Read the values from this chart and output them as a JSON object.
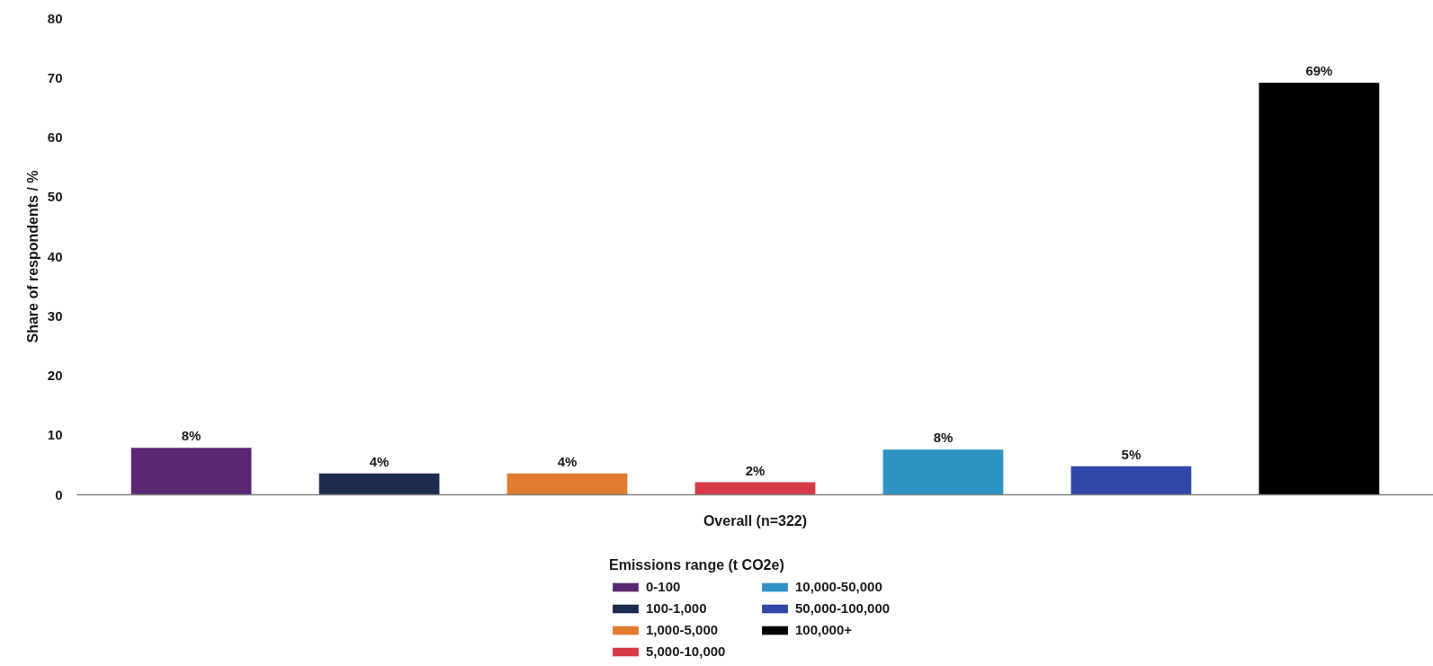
{
  "chart_data": {
    "type": "bar",
    "categories": [
      "Overall (n=322)"
    ],
    "ylabel": "Share of respondents / %",
    "legend_title": "Emissions range (t CO2e)",
    "legend": "bottom",
    "ylim": [
      0,
      80
    ],
    "yticks": [
      0,
      10,
      20,
      30,
      40,
      50,
      60,
      70,
      80
    ],
    "series": [
      {
        "name": "0-100",
        "color": "#5a2870",
        "values": [
          7.9
        ],
        "value_labels": [
          "8%"
        ]
      },
      {
        "name": "100-1,000",
        "color": "#1c2b4f",
        "values": [
          3.6
        ],
        "value_labels": [
          "4%"
        ]
      },
      {
        "name": "1,000-5,000",
        "color": "#e07b2e",
        "values": [
          3.6
        ],
        "value_labels": [
          "4%"
        ]
      },
      {
        "name": "5,000-10,000",
        "color": "#d63a46",
        "values": [
          2.1
        ],
        "value_labels": [
          "2%"
        ]
      },
      {
        "name": "10,000-50,000",
        "color": "#2e93c2",
        "values": [
          7.6
        ],
        "value_labels": [
          "8%"
        ]
      },
      {
        "name": "50,000-100,000",
        "color": "#2f47a6",
        "values": [
          4.8
        ],
        "value_labels": [
          "5%"
        ]
      },
      {
        "name": "100,000+",
        "color": "#000000",
        "values": [
          69.2
        ],
        "value_labels": [
          "69%"
        ]
      }
    ]
  }
}
